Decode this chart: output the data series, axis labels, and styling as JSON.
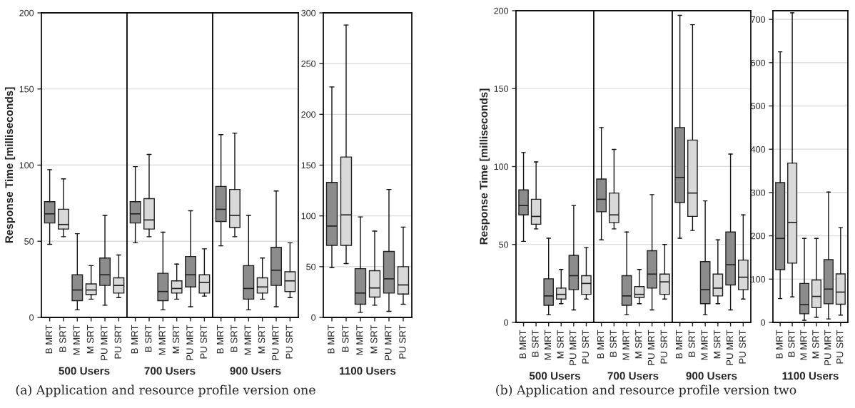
{
  "chart_data": [
    {
      "type": "box",
      "xlabel": "500 Users",
      "ylabel": "Response Time [milliseconds]",
      "annotations": [
        "(a) Application and resource profile version one"
      ],
      "categories": [
        "B MRT",
        "B SRT",
        "M MRT",
        "M SRT",
        "PU MRT",
        "PU SRT"
      ],
      "colors": [
        "#8c8c8c",
        "#d9d9d9",
        "#8c8c8c",
        "#d9d9d9",
        "#8c8c8c",
        "#d9d9d9"
      ],
      "ylim": [
        0,
        200
      ],
      "yticks": [
        0,
        50,
        100,
        150,
        200
      ],
      "grid": "y",
      "boxes": [
        {
          "low": 48,
          "q1": 62,
          "median": 68,
          "q3": 76,
          "high": 97
        },
        {
          "low": 53,
          "q1": 58,
          "median": 61,
          "q3": 71,
          "high": 91
        },
        {
          "low": 5,
          "q1": 11,
          "median": 18,
          "q3": 28,
          "high": 55
        },
        {
          "low": 12,
          "q1": 15,
          "median": 18,
          "q3": 22,
          "high": 34
        },
        {
          "low": 8,
          "q1": 21,
          "median": 28,
          "q3": 39,
          "high": 67
        },
        {
          "low": 13,
          "q1": 16,
          "median": 21,
          "q3": 26,
          "high": 41
        }
      ]
    },
    {
      "type": "box",
      "xlabel": "700 Users",
      "categories": [
        "B MRT",
        "B SRT",
        "M MRT",
        "M SRT",
        "PU MRT",
        "PU SRT"
      ],
      "colors": [
        "#8c8c8c",
        "#d9d9d9",
        "#8c8c8c",
        "#d9d9d9",
        "#8c8c8c",
        "#d9d9d9"
      ],
      "ylim": [
        0,
        200
      ],
      "yticks": [
        0,
        50,
        100,
        150,
        200
      ],
      "grid": "y",
      "tick_labels": "x",
      "boxes": [
        {
          "low": 49,
          "q1": 62,
          "median": 68,
          "q3": 76,
          "high": 99
        },
        {
          "low": 53,
          "q1": 58,
          "median": 64,
          "q3": 78,
          "high": 107
        },
        {
          "low": 5,
          "q1": 11,
          "median": 17,
          "q3": 29,
          "high": 56
        },
        {
          "low": 12,
          "q1": 16,
          "median": 19,
          "q3": 24,
          "high": 35
        },
        {
          "low": 7,
          "q1": 20,
          "median": 28,
          "q3": 40,
          "high": 70
        },
        {
          "low": 14,
          "q1": 16,
          "median": 23,
          "q3": 28,
          "high": 45
        }
      ]
    },
    {
      "type": "box",
      "xlabel": "900 Users",
      "categories": [
        "B MRT",
        "B SRT",
        "M MRT",
        "M SRT",
        "PU MRT",
        "PU SRT"
      ],
      "colors": [
        "#8c8c8c",
        "#d9d9d9",
        "#8c8c8c",
        "#d9d9d9",
        "#8c8c8c",
        "#d9d9d9"
      ],
      "ylim": [
        0,
        200
      ],
      "yticks": [
        0,
        50,
        100,
        150,
        200
      ],
      "grid": "y",
      "tick_labels": "x",
      "boxes": [
        {
          "low": 47,
          "q1": 63,
          "median": 71,
          "q3": 86,
          "high": 120
        },
        {
          "low": 53,
          "q1": 59,
          "median": 67,
          "q3": 84,
          "high": 121
        },
        {
          "low": 5,
          "q1": 12,
          "median": 19,
          "q3": 34,
          "high": 67
        },
        {
          "low": 12,
          "q1": 16,
          "median": 20,
          "q3": 26,
          "high": 39
        },
        {
          "low": 7,
          "q1": 21,
          "median": 31,
          "q3": 46,
          "high": 83
        },
        {
          "low": 13,
          "q1": 17,
          "median": 24,
          "q3": 30,
          "high": 49
        }
      ]
    },
    {
      "type": "box",
      "xlabel": "1100 Users",
      "categories": [
        "B MRT",
        "B SRT",
        "M MRT",
        "M SRT",
        "PU MRT",
        "PU SRT"
      ],
      "colors": [
        "#8c8c8c",
        "#d9d9d9",
        "#8c8c8c",
        "#d9d9d9",
        "#8c8c8c",
        "#d9d9d9"
      ],
      "ylim": [
        0,
        300
      ],
      "yticks": [
        0,
        50,
        100,
        150,
        200,
        250,
        300
      ],
      "grid": "y",
      "boxes": [
        {
          "low": 49,
          "q1": 71,
          "median": 90,
          "q3": 133,
          "high": 227
        },
        {
          "low": 53,
          "q1": 71,
          "median": 101,
          "q3": 158,
          "high": 288
        },
        {
          "low": 5,
          "q1": 13,
          "median": 24,
          "q3": 48,
          "high": 99
        },
        {
          "low": 12,
          "q1": 20,
          "median": 29,
          "q3": 46,
          "high": 85
        },
        {
          "low": 6,
          "q1": 24,
          "median": 38,
          "q3": 65,
          "high": 126
        },
        {
          "low": 13,
          "q1": 23,
          "median": 32,
          "q3": 50,
          "high": 89
        }
      ]
    },
    {
      "type": "box",
      "xlabel": "500 Users",
      "ylabel": "Response Time [milliseconds]",
      "annotations": [
        "(b) Application and resource profile version two"
      ],
      "categories": [
        "B MRT",
        "B SRT",
        "M MRT",
        "M SRT",
        "PU MRT",
        "PU SRT"
      ],
      "colors": [
        "#8c8c8c",
        "#d9d9d9",
        "#8c8c8c",
        "#d9d9d9",
        "#8c8c8c",
        "#d9d9d9"
      ],
      "ylim": [
        0,
        200
      ],
      "yticks": [
        0,
        50,
        100,
        150,
        200
      ],
      "grid": "y",
      "boxes": [
        {
          "low": 52,
          "q1": 69,
          "median": 75,
          "q3": 85,
          "high": 109
        },
        {
          "low": 60,
          "q1": 63,
          "median": 68,
          "q3": 79,
          "high": 103
        },
        {
          "low": 5,
          "q1": 11,
          "median": 17,
          "q3": 28,
          "high": 54
        },
        {
          "low": 12,
          "q1": 15,
          "median": 18,
          "q3": 22,
          "high": 34
        },
        {
          "low": 8,
          "q1": 21,
          "median": 30,
          "q3": 43,
          "high": 75
        },
        {
          "low": 15,
          "q1": 18,
          "median": 25,
          "q3": 30,
          "high": 48
        }
      ]
    },
    {
      "type": "box",
      "xlabel": "700 Users",
      "categories": [
        "B MRT",
        "B SRT",
        "M MRT",
        "M SRT",
        "PU MRT",
        "PU SRT"
      ],
      "colors": [
        "#8c8c8c",
        "#d9d9d9",
        "#8c8c8c",
        "#d9d9d9",
        "#8c8c8c",
        "#d9d9d9"
      ],
      "ylim": [
        0,
        200
      ],
      "yticks": [
        0,
        50,
        100,
        150,
        200
      ],
      "grid": "y",
      "tick_labels": "x",
      "boxes": [
        {
          "low": 53,
          "q1": 71,
          "median": 79,
          "q3": 92,
          "high": 125
        },
        {
          "low": 60,
          "q1": 64,
          "median": 69,
          "q3": 83,
          "high": 111
        },
        {
          "low": 5,
          "q1": 11,
          "median": 17,
          "q3": 30,
          "high": 58
        },
        {
          "low": 12,
          "q1": 16,
          "median": 18,
          "q3": 23,
          "high": 34
        },
        {
          "low": 8,
          "q1": 22,
          "median": 31,
          "q3": 46,
          "high": 82
        },
        {
          "low": 15,
          "q1": 18,
          "median": 26,
          "q3": 31,
          "high": 50
        }
      ]
    },
    {
      "type": "box",
      "xlabel": "900 Users",
      "categories": [
        "B MRT",
        "B SRT",
        "M MRT",
        "M SRT",
        "PU MRT",
        "PU SRT"
      ],
      "colors": [
        "#8c8c8c",
        "#d9d9d9",
        "#8c8c8c",
        "#d9d9d9",
        "#8c8c8c",
        "#d9d9d9"
      ],
      "ylim": [
        0,
        200
      ],
      "yticks": [
        0,
        50,
        100,
        150,
        200
      ],
      "grid": "y",
      "tick_labels": "x",
      "boxes": [
        {
          "low": 54,
          "q1": 77,
          "median": 93,
          "q3": 125,
          "high": 197
        },
        {
          "low": 59,
          "q1": 68,
          "median": 83,
          "q3": 117,
          "high": 191
        },
        {
          "low": 5,
          "q1": 12,
          "median": 21,
          "q3": 39,
          "high": 78
        },
        {
          "low": 12,
          "q1": 17,
          "median": 22,
          "q3": 31,
          "high": 53
        },
        {
          "low": 8,
          "q1": 24,
          "median": 37,
          "q3": 58,
          "high": 108
        },
        {
          "low": 15,
          "q1": 21,
          "median": 29,
          "q3": 40,
          "high": 69
        }
      ]
    },
    {
      "type": "box",
      "xlabel": "1100 Users",
      "categories": [
        "B MRT",
        "B SRT",
        "M MRT",
        "M SRT",
        "PU MRT",
        "PU SRT"
      ],
      "colors": [
        "#8c8c8c",
        "#d9d9d9",
        "#8c8c8c",
        "#d9d9d9",
        "#8c8c8c",
        "#d9d9d9"
      ],
      "ylim": [
        0,
        720
      ],
      "yticks": [
        0,
        100,
        200,
        300,
        400,
        500,
        600,
        700
      ],
      "grid": "y",
      "boxes": [
        {
          "low": 55,
          "q1": 122,
          "median": 194,
          "q3": 323,
          "high": 625
        },
        {
          "low": 59,
          "q1": 137,
          "median": 231,
          "q3": 368,
          "high": 715
        },
        {
          "low": 5,
          "q1": 20,
          "median": 41,
          "q3": 90,
          "high": 194
        },
        {
          "low": 12,
          "q1": 34,
          "median": 60,
          "q3": 98,
          "high": 194
        },
        {
          "low": 8,
          "q1": 43,
          "median": 77,
          "q3": 145,
          "high": 301
        },
        {
          "low": 17,
          "q1": 42,
          "median": 70,
          "q3": 112,
          "high": 219
        }
      ]
    }
  ]
}
